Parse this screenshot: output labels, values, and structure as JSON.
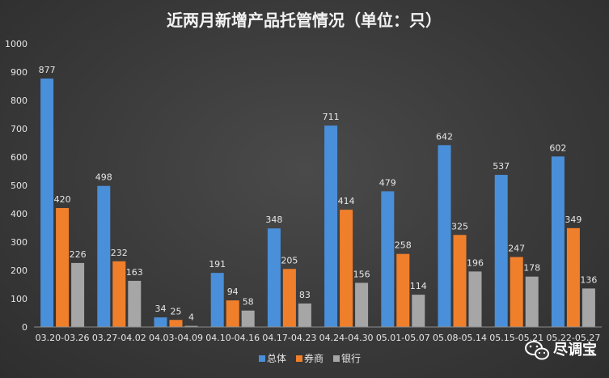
{
  "chart_data": {
    "type": "bar",
    "title": "近两月新增产品托管情况（单位：只）",
    "categories": [
      "03.20-03.26",
      "03.27-04.02",
      "04.03-04.09",
      "04.10-04.16",
      "04.17-04.23",
      "04.24-04.30",
      "05.01-05.07",
      "05.08-05.14",
      "05.15-05.21",
      "05.22-05.27"
    ],
    "series": [
      {
        "name": "总体",
        "color": "#4a8fd9",
        "values": [
          877,
          498,
          34,
          191,
          348,
          711,
          479,
          642,
          537,
          602
        ]
      },
      {
        "name": "券商",
        "color": "#f07f2c",
        "values": [
          420,
          232,
          25,
          94,
          205,
          414,
          258,
          325,
          247,
          349
        ]
      },
      {
        "name": "银行",
        "color": "#a6a6a6",
        "values": [
          226,
          163,
          4,
          58,
          83,
          156,
          114,
          196,
          178,
          136
        ]
      }
    ],
    "ylim": [
      0,
      1000
    ],
    "yticks": [
      0,
      100,
      200,
      300,
      400,
      500,
      600,
      700,
      800,
      900,
      1000
    ],
    "grid": false,
    "legend_position": "bottom"
  },
  "watermark": {
    "text": "尽调宝",
    "icon": "wechat-icon"
  }
}
